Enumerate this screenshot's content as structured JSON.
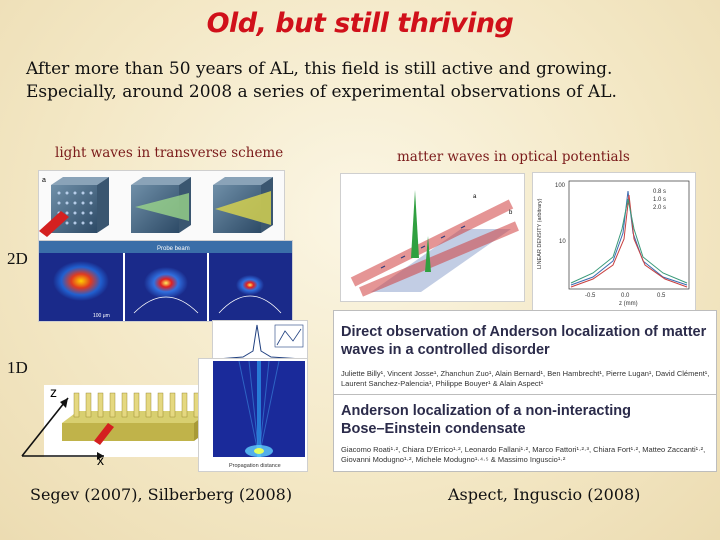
{
  "slide": {
    "title": "Old, but still thriving",
    "intro_line1": "After more than 50 years of AL, this field is still active and growing.",
    "intro_line2": "Especially, around 2008 a series of experimental observations of AL.",
    "caption_light": "light waves in transverse scheme",
    "caption_matter": "matter waves in optical potentials",
    "label_2d": "2D",
    "label_1d": "1D",
    "label_z": "z",
    "label_x": "x",
    "credit_left": "Segev (2007), Silberberg (2008)",
    "credit_right": "Aspect, Inguscio (2008)"
  },
  "papers": [
    {
      "title_line1": "Direct observation of Anderson localization of matter",
      "title_line2": "waves in a controlled disorder",
      "authors_line1": "Juliette Billy¹, Vincent Josse¹, Zhanchun Zuo¹, Alain Bernard¹, Ben Hambrecht¹, Pierre Lugan¹, David Clément¹,",
      "authors_line2": "Laurent Sanchez-Palencia¹, Philippe Bouyer¹ & Alain Aspect¹"
    },
    {
      "title_line1": "Anderson localization of a non-interacting",
      "title_line2": "Bose–Einstein condensate",
      "authors_line1": "Giacomo Roati¹·², Chiara D’Errico¹·², Leonardo Fallani¹·², Marco Fattori¹·²·³, Chiara Fort¹·², Matteo Zaccanti¹·²,",
      "authors_line2": "Giovanni Modugno¹·², Michele Modugno¹·⁴·⁵ & Massimo Inguscio¹·²"
    }
  ],
  "figure_text": {
    "beam_label": "Probe beam",
    "scale_bar": "100 μm",
    "panel_a": "a",
    "panel_b": "b",
    "ylabel": "LINEAR DENSITY (arbitrary)",
    "xlabel": "z (mm)",
    "legend": [
      "0.8 s",
      "1.0 s",
      "2.0 s"
    ],
    "yticks": [
      "100",
      "10"
    ],
    "xticks": [
      "-0.5",
      "0.0",
      "0.5"
    ],
    "bottom_axis": "Propagation distance"
  }
}
